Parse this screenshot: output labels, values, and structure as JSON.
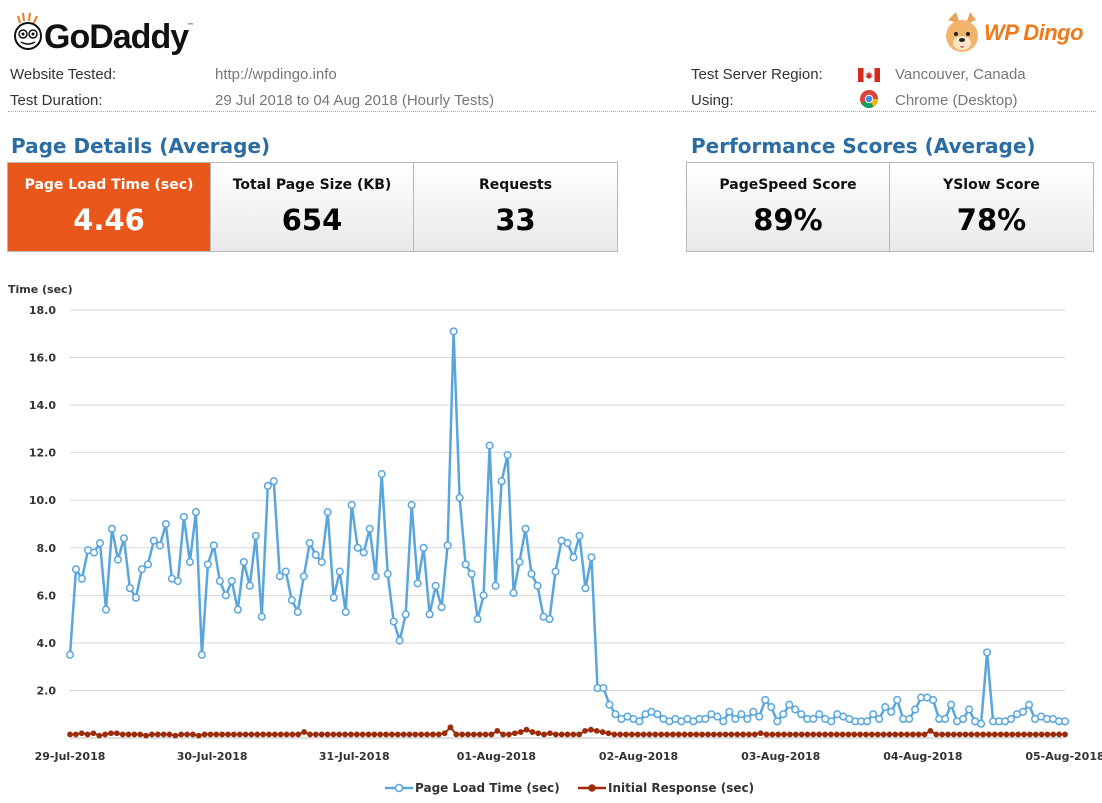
{
  "header": {
    "brand_name": "GoDaddy",
    "brand_tm": "™",
    "partner_name": "WP Dingo"
  },
  "meta": {
    "website_tested_label": "Website Tested:",
    "website_tested_value": "http://wpdingo.info",
    "test_duration_label": "Test Duration:",
    "test_duration_value": "29 Jul 2018 to 04 Aug 2018 (Hourly Tests)",
    "region_label": "Test Server Region:",
    "region_value": "Vancouver, Canada",
    "using_label": "Using:",
    "using_value": "Chrome (Desktop)"
  },
  "page_details": {
    "title": "Page Details (Average)",
    "cards": [
      {
        "label": "Page Load Time (sec)",
        "value": "4.46"
      },
      {
        "label": "Total Page Size (KB)",
        "value": "654"
      },
      {
        "label": "Requests",
        "value": "33"
      }
    ]
  },
  "performance": {
    "title": "Performance Scores (Average)",
    "cards": [
      {
        "label": "PageSpeed Score",
        "value": "89%"
      },
      {
        "label": "YSlow Score",
        "value": "78%"
      }
    ]
  },
  "colors": {
    "accent_orange": "#e9581a",
    "title_blue": "#2b6ca3",
    "series_load": "#5aa6dc",
    "series_response": "#9b2c0b"
  },
  "chart_data": {
    "type": "line",
    "ylabel": "Time (sec)",
    "ylim": [
      0,
      18
    ],
    "yticks": [
      "18.0",
      "16.0",
      "14.0",
      "12.0",
      "10.0",
      "8.0",
      "6.0",
      "4.0",
      "2.0"
    ],
    "xticks": [
      "29-Jul-2018",
      "30-Jul-2018",
      "31-Jul-2018",
      "01-Aug-2018",
      "02-Aug-2018",
      "03-Aug-2018",
      "04-Aug-2018",
      "05-Aug-2018"
    ],
    "grid": true,
    "legend_position": "bottom",
    "series": [
      {
        "name": "Page Load Time (sec)",
        "values": [
          3.5,
          7.1,
          6.7,
          7.9,
          7.8,
          8.2,
          5.4,
          8.8,
          7.5,
          8.4,
          6.3,
          5.9,
          7.1,
          7.3,
          8.3,
          8.1,
          9,
          6.7,
          6.6,
          9.3,
          7.4,
          9.5,
          3.5,
          7.3,
          8.1,
          6.6,
          6,
          6.6,
          5.4,
          7.4,
          6.4,
          8.5,
          5.1,
          10.6,
          10.8,
          6.8,
          7,
          5.8,
          5.3,
          6.8,
          8.2,
          7.7,
          7.4,
          9.5,
          5.9,
          7,
          5.3,
          9.8,
          8,
          7.8,
          8.8,
          6.8,
          11.1,
          6.9,
          4.9,
          4.1,
          5.2,
          9.8,
          6.5,
          8,
          5.2,
          6.4,
          5.5,
          8.1,
          17.1,
          10.1,
          7.3,
          6.9,
          5,
          6,
          12.3,
          6.4,
          10.8,
          11.9,
          6.1,
          7.4,
          8.8,
          6.9,
          6.4,
          5.1,
          5,
          7,
          8.3,
          8.2,
          7.6,
          8.5,
          6.3,
          7.6,
          2.1,
          2.1,
          1.4,
          1,
          0.8,
          0.9,
          0.8,
          0.7,
          1,
          1.1,
          1,
          0.8,
          0.7,
          0.8,
          0.7,
          0.8,
          0.7,
          0.8,
          0.8,
          1,
          0.9,
          0.7,
          1.1,
          0.8,
          1,
          0.8,
          1.1,
          0.9,
          1.6,
          1.3,
          0.7,
          1,
          1.4,
          1.2,
          1,
          0.8,
          0.8,
          1,
          0.8,
          0.7,
          1,
          0.9,
          0.8,
          0.7,
          0.7,
          0.7,
          1,
          0.8,
          1.3,
          1.1,
          1.6,
          0.8,
          0.8,
          1.2,
          1.7,
          1.7,
          1.6,
          0.8,
          0.8,
          1.4,
          0.7,
          0.8,
          1.2,
          0.7,
          0.6,
          3.6,
          0.7,
          0.7,
          0.7,
          0.8,
          1,
          1.1,
          1.4,
          0.8,
          0.9,
          0.8,
          0.8,
          0.7,
          0.7
        ]
      },
      {
        "name": "Initial Response (sec)",
        "values": [
          0.15,
          0.15,
          0.2,
          0.15,
          0.2,
          0.1,
          0.15,
          0.2,
          0.2,
          0.15,
          0.15,
          0.15,
          0.15,
          0.1,
          0.15,
          0.15,
          0.15,
          0.15,
          0.1,
          0.15,
          0.15,
          0.15,
          0.1,
          0.15,
          0.15,
          0.15,
          0.15,
          0.15,
          0.15,
          0.15,
          0.15,
          0.15,
          0.15,
          0.15,
          0.15,
          0.15,
          0.15,
          0.15,
          0.15,
          0.15,
          0.25,
          0.15,
          0.15,
          0.15,
          0.15,
          0.15,
          0.15,
          0.15,
          0.15,
          0.15,
          0.15,
          0.15,
          0.15,
          0.15,
          0.15,
          0.15,
          0.15,
          0.15,
          0.15,
          0.15,
          0.15,
          0.15,
          0.15,
          0.15,
          0.2,
          0.45,
          0.15,
          0.15,
          0.15,
          0.15,
          0.15,
          0.15,
          0.15,
          0.3,
          0.15,
          0.15,
          0.2,
          0.25,
          0.35,
          0.25,
          0.2,
          0.15,
          0.2,
          0.15,
          0.15,
          0.15,
          0.15,
          0.15,
          0.3,
          0.35,
          0.3,
          0.25,
          0.2,
          0.15,
          0.15,
          0.15,
          0.15,
          0.15,
          0.15,
          0.15,
          0.15,
          0.15,
          0.15,
          0.15,
          0.15,
          0.15,
          0.15,
          0.15,
          0.15,
          0.15,
          0.15,
          0.15,
          0.15,
          0.15,
          0.15,
          0.15,
          0.15,
          0.15,
          0.2,
          0.15,
          0.15,
          0.15,
          0.15,
          0.15,
          0.15,
          0.15,
          0.15,
          0.15,
          0.15,
          0.15,
          0.15,
          0.15,
          0.15,
          0.15,
          0.15,
          0.15,
          0.15,
          0.15,
          0.15,
          0.15,
          0.15,
          0.15,
          0.15,
          0.15,
          0.15,
          0.15,
          0.15,
          0.3,
          0.15,
          0.15,
          0.15,
          0.15,
          0.15,
          0.15,
          0.15,
          0.15,
          0.15,
          0.15,
          0.15,
          0.15,
          0.15,
          0.15,
          0.15,
          0.15,
          0.15,
          0.15,
          0.15,
          0.15,
          0.15,
          0.15,
          0.15
        ]
      }
    ]
  }
}
